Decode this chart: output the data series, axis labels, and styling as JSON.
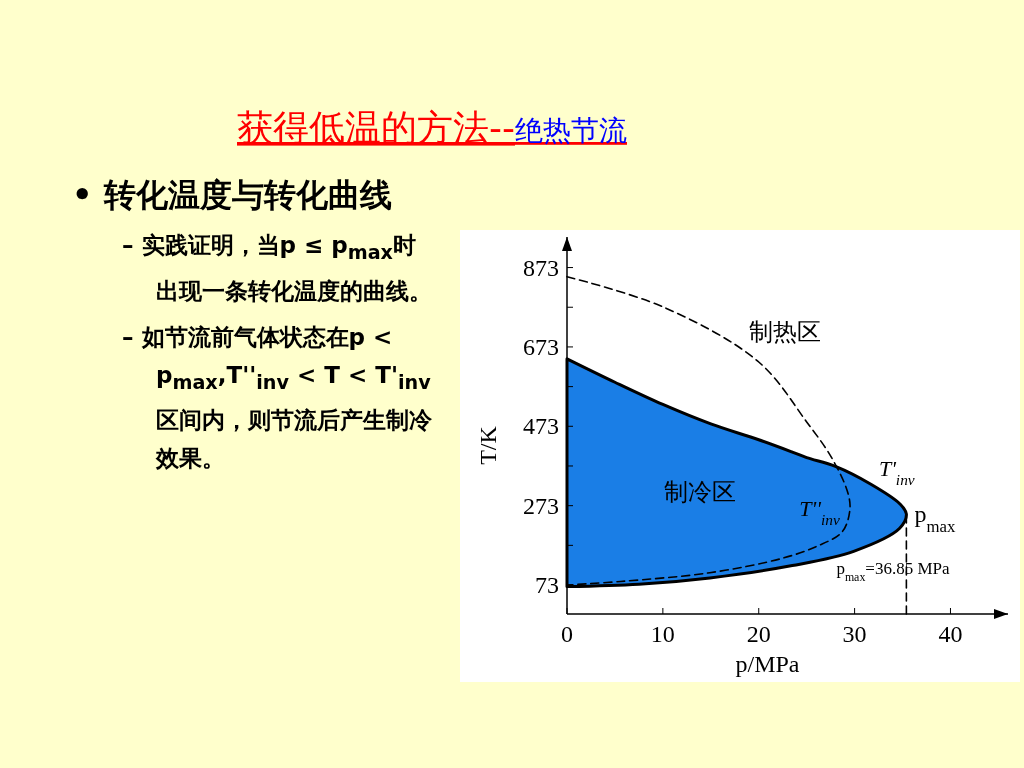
{
  "chart_data": {
    "type": "line",
    "title": "获得低温的方法--",
    "subtitle": "绝热节流",
    "xlabel": "p/MPa",
    "ylabel": "T/K",
    "xlim": [
      0,
      46
    ],
    "ylim": [
      0,
      950
    ],
    "xticks": [
      0,
      10,
      20,
      30,
      40
    ],
    "yticks": [
      73,
      {
        "value": 173,
        "label": null
      },
      273,
      {
        "value": 373,
        "label": null
      },
      473,
      {
        "value": 573,
        "label": null
      },
      673,
      {
        "value": 773,
        "label": null
      },
      873
    ],
    "series": [
      {
        "name": "T'$_{inv}$",
        "type": "area",
        "color": "#1a7ee6",
        "line_style": "solid",
        "x": [
          0,
          5,
          10,
          15,
          20,
          23.5,
          25,
          28,
          31.7,
          34.7,
          35.4,
          34.7,
          29.9,
          23.5,
          14.9,
          7.5,
          0
        ],
        "values": [
          643,
          584,
          528,
          479,
          439,
          408,
          394,
          372,
          327,
          278,
          252,
          216,
          158,
          122,
          91,
          75,
          69
        ]
      },
      {
        "name": "T''$_{inv}$",
        "color": "#000000",
        "line_style": "dashed",
        "x": [
          0,
          10,
          20,
          25,
          27.6,
          29.3,
          29.5,
          28.7,
          26.1,
          22.4,
          14.9,
          5.6,
          0
        ],
        "values": [
          850,
          774,
          635,
          484,
          394,
          305,
          261,
          207,
          171,
          140,
          104,
          82,
          73
        ]
      },
      {
        "color": "#000000",
        "line_style": "dashed",
        "x": [
          35.4,
          35.4
        ],
        "values": [
          0,
          252
        ]
      }
    ],
    "annotations": [
      "• 转化温度与转化曲线",
      "– 实践证明，当p ≤ p$_{max}$时出现一条转化温度的曲线。",
      "– 如节流前气体状态在p < p$_{max}$,T''$_{inv}$ < T < T'$_{inv}$区间内，则节流后产生制冷效果。",
      "制热区",
      "制冷区",
      {
        "text": "p$_{max}$",
        "x": 35.4,
        "y": 252
      },
      {
        "text": "p$_{max}$=36.85 MPa",
        "x": 35.4,
        "y": 90
      }
    ]
  }
}
